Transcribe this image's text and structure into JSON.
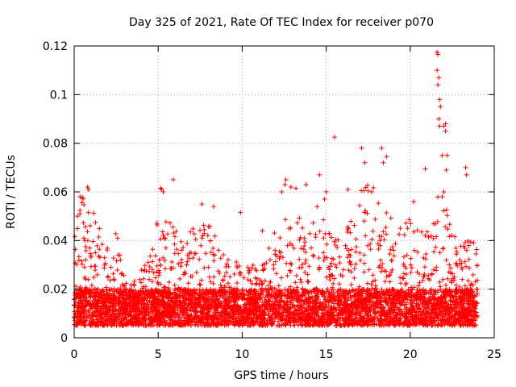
{
  "chart_data": {
    "type": "scatter",
    "title": "Day 325 of 2021, Rate Of TEC Index for receiver p070",
    "xlabel": "GPS time / hours",
    "ylabel": "ROTI / TECUs",
    "xlim": [
      0,
      25
    ],
    "ylim": [
      0,
      0.12
    ],
    "x_ticks": [
      0,
      5,
      10,
      15,
      20,
      25
    ],
    "y_ticks": [
      0,
      0.02,
      0.04,
      0.06,
      0.08,
      0.1,
      0.12
    ],
    "x_tick_labels": [
      "0",
      "5",
      "10",
      "15",
      "20",
      "25"
    ],
    "y_tick_labels": [
      "0",
      "0.02",
      "0.04",
      "0.06",
      "0.08",
      "0.1",
      "0.12"
    ],
    "grid": true,
    "marker": "+",
    "series": [
      {
        "name": "ROTI",
        "color": "#ff0000",
        "x_range": [
          0,
          24
        ],
        "typical_range": [
          0.005,
          0.02
        ],
        "envelope": [
          [
            0,
            0.045
          ],
          [
            0.5,
            0.06
          ],
          [
            1,
            0.055
          ],
          [
            1.5,
            0.045
          ],
          [
            2,
            0.04
          ],
          [
            2.5,
            0.045
          ],
          [
            3,
            0.025
          ],
          [
            3.5,
            0.022
          ],
          [
            4,
            0.03
          ],
          [
            4.5,
            0.038
          ],
          [
            5,
            0.05
          ],
          [
            5.5,
            0.05
          ],
          [
            6,
            0.045
          ],
          [
            6.5,
            0.04
          ],
          [
            7,
            0.045
          ],
          [
            7.5,
            0.05
          ],
          [
            8,
            0.048
          ],
          [
            8.5,
            0.04
          ],
          [
            9,
            0.035
          ],
          [
            9.5,
            0.032
          ],
          [
            10,
            0.035
          ],
          [
            10.5,
            0.03
          ],
          [
            11,
            0.03
          ],
          [
            11.5,
            0.035
          ],
          [
            12,
            0.045
          ],
          [
            12.5,
            0.055
          ],
          [
            13,
            0.05
          ],
          [
            13.5,
            0.05
          ],
          [
            14,
            0.05
          ],
          [
            14.5,
            0.055
          ],
          [
            15,
            0.048
          ],
          [
            15.5,
            0.04
          ],
          [
            16,
            0.045
          ],
          [
            16.5,
            0.05
          ],
          [
            17,
            0.06
          ],
          [
            17.5,
            0.065
          ],
          [
            18,
            0.06
          ],
          [
            18.5,
            0.058
          ],
          [
            19,
            0.05
          ],
          [
            19.5,
            0.045
          ],
          [
            20,
            0.05
          ],
          [
            20.5,
            0.045
          ],
          [
            21,
            0.045
          ],
          [
            21.5,
            0.06
          ],
          [
            22,
            0.06
          ],
          [
            22.5,
            0.045
          ],
          [
            23,
            0.04
          ],
          [
            23.5,
            0.04
          ],
          [
            24,
            0.04
          ]
        ],
        "notable_points": [
          [
            21.6,
            0.1175
          ],
          [
            21.65,
            0.1165
          ],
          [
            21.6,
            0.11
          ],
          [
            21.7,
            0.107
          ],
          [
            21.65,
            0.104
          ],
          [
            21.75,
            0.098
          ],
          [
            21.8,
            0.095
          ],
          [
            21.7,
            0.09
          ],
          [
            22.1,
            0.088
          ],
          [
            22.0,
            0.087
          ],
          [
            21.75,
            0.087
          ],
          [
            22.1,
            0.085
          ],
          [
            21.9,
            0.075
          ],
          [
            22.2,
            0.075
          ],
          [
            22.15,
            0.069
          ],
          [
            15.5,
            0.0825
          ],
          [
            17.1,
            0.078
          ],
          [
            18.3,
            0.078
          ],
          [
            18.6,
            0.0745
          ],
          [
            17.3,
            0.072
          ],
          [
            18.4,
            0.072
          ],
          [
            23.3,
            0.07
          ],
          [
            23.35,
            0.067
          ],
          [
            20.9,
            0.0695
          ],
          [
            14.6,
            0.067
          ],
          [
            12.6,
            0.065
          ],
          [
            5.9,
            0.065
          ],
          [
            12.55,
            0.063
          ],
          [
            13.8,
            0.063
          ],
          [
            0.8,
            0.062
          ],
          [
            0.85,
            0.061
          ],
          [
            5.15,
            0.0615
          ],
          [
            5.2,
            0.061
          ],
          [
            5.3,
            0.06
          ],
          [
            12.9,
            0.062
          ],
          [
            16.3,
            0.061
          ],
          [
            13.2,
            0.0615
          ],
          [
            12.35,
            0.06
          ],
          [
            15.0,
            0.06
          ],
          [
            17.7,
            0.06
          ],
          [
            14.9,
            0.057
          ],
          [
            20.2,
            0.056
          ],
          [
            9.9,
            0.0515
          ],
          [
            11.2,
            0.044
          ],
          [
            0.35,
            0.058
          ],
          [
            0.2,
            0.05
          ],
          [
            7.6,
            0.055
          ],
          [
            8.3,
            0.054
          ],
          [
            21.9,
            0.058
          ],
          [
            22.0,
            0.06
          ]
        ]
      }
    ]
  }
}
